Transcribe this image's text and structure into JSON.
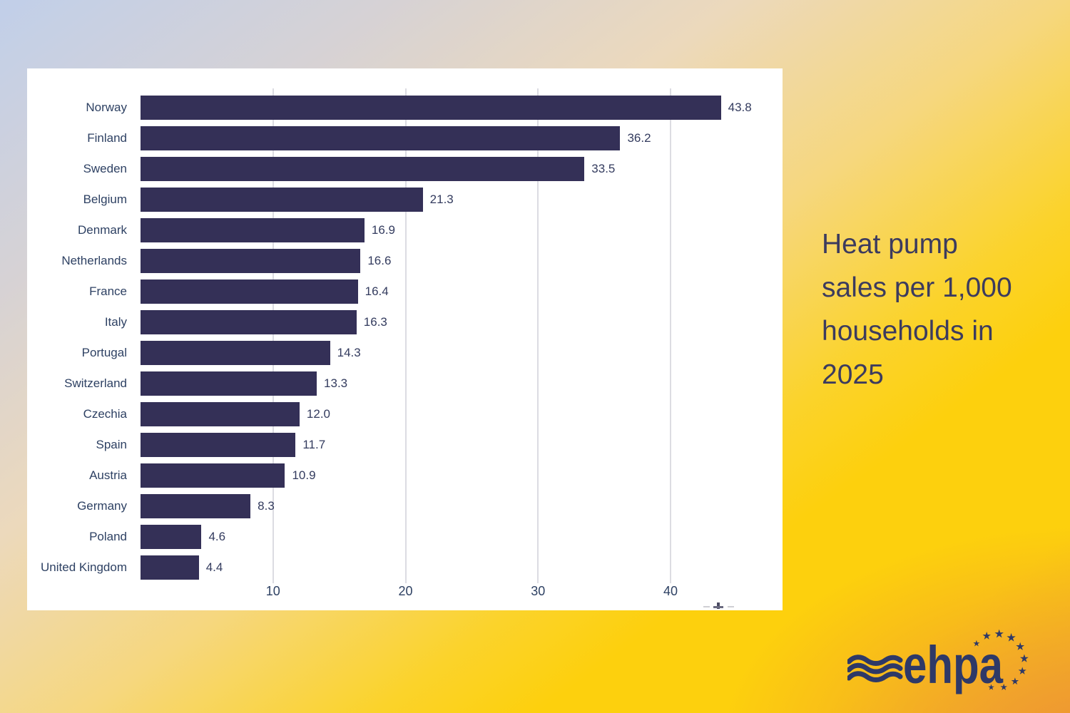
{
  "title": {
    "lines": [
      "Heat pump",
      "sales per 1,000",
      "households in",
      "2025"
    ],
    "text": "Heat pump sales per 1,000 households in 2025"
  },
  "logo": {
    "text": "ehpa"
  },
  "chart_data": {
    "type": "bar",
    "orientation": "horizontal",
    "title": "Heat pump sales per 1,000 households in 2025",
    "categories": [
      "Norway",
      "Finland",
      "Sweden",
      "Belgium",
      "Denmark",
      "Netherlands",
      "France",
      "Italy",
      "Portugal",
      "Switzerland",
      "Czechia",
      "Spain",
      "Austria",
      "Germany",
      "Poland",
      "United Kingdom"
    ],
    "values": [
      43.8,
      36.2,
      33.5,
      21.3,
      16.9,
      16.6,
      16.4,
      16.3,
      14.3,
      13.3,
      12.0,
      11.7,
      10.9,
      8.3,
      4.6,
      4.4
    ],
    "value_labels": [
      "43.8",
      "36.2",
      "33.5",
      "21.3",
      "16.9",
      "16.6",
      "16.4",
      "16.3",
      "14.3",
      "13.3",
      "12.0",
      "11.7",
      "10.9",
      "8.3",
      "4.6",
      "4.4"
    ],
    "x_ticks": [
      10,
      20,
      30,
      40
    ],
    "xlim": [
      0,
      48.45
    ],
    "xlabel": "",
    "ylabel": "",
    "grid": true,
    "legend_position": "none"
  },
  "colors": {
    "bar": "#343057",
    "category_label": "#2e4163",
    "value_label": "#333b5e",
    "tick_label": "#2e4163",
    "grid_line": "#dcdce2",
    "panel_background": "#ffffff",
    "title_text": "#3c3b5e",
    "logo": "#2e3967"
  }
}
